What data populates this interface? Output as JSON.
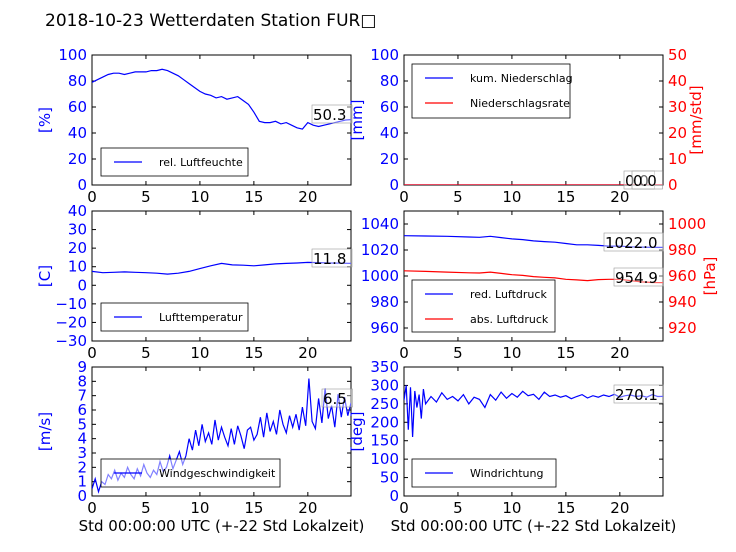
{
  "title": "2018-10-23 Wetterdaten Station FUR□",
  "colors": {
    "blue": "#0000ff",
    "red": "#ff0000",
    "black": "#000000"
  },
  "chart_data": [
    {
      "type": "line",
      "ylabel": "[%]",
      "xlim": [
        0,
        24
      ],
      "ylim": [
        0,
        100
      ],
      "xticks": [
        "0",
        "5",
        "10",
        "15",
        "20"
      ],
      "yticks": [
        "0",
        "20",
        "40",
        "60",
        "80",
        "100"
      ],
      "legend": "lower-left",
      "last_value": "50.3",
      "series": [
        {
          "name": "rel. Luftfeuchte",
          "color": "#0000ff",
          "x": [
            0,
            0.5,
            1,
            1.5,
            2,
            2.5,
            3,
            3.5,
            4,
            4.5,
            5,
            5.5,
            6,
            6.5,
            7,
            7.5,
            8,
            8.5,
            9,
            9.5,
            10,
            10.5,
            11,
            11.5,
            12,
            12.5,
            13,
            13.5,
            14,
            14.5,
            15,
            15.5,
            16,
            16.5,
            17,
            17.5,
            18,
            18.5,
            19,
            19.5,
            20,
            20.5,
            21,
            21.5,
            22,
            22.5,
            23,
            23.5,
            24
          ],
          "y": [
            79,
            81,
            83,
            85,
            86,
            86,
            85,
            86,
            87,
            87,
            87,
            88,
            88,
            89,
            88,
            86,
            84,
            81,
            78,
            75,
            72,
            70,
            69,
            67,
            68,
            66,
            67,
            68,
            65,
            62,
            56,
            49,
            48,
            48,
            49,
            47,
            48,
            46,
            44,
            43,
            48,
            46,
            45,
            46,
            47,
            48,
            49,
            50,
            50.3
          ]
        }
      ]
    },
    {
      "type": "line",
      "ylabel": "[mm]",
      "ylabel_right": "[mm/std]",
      "xlim": [
        0,
        24
      ],
      "ylim": [
        0,
        100
      ],
      "ylim_right": [
        0,
        50
      ],
      "xticks": [
        "0",
        "5",
        "10",
        "15",
        "20"
      ],
      "yticks": [
        "0",
        "20",
        "40",
        "60",
        "80",
        "100"
      ],
      "yticks_right": [
        "0",
        "10",
        "20",
        "30",
        "40",
        "50"
      ],
      "legend": "upper-left",
      "last_values": [
        "0.0",
        "0.0"
      ],
      "series": [
        {
          "name": "kum. Niederschlag",
          "color": "#0000ff",
          "x": [
            0,
            24
          ],
          "y": [
            0,
            0
          ]
        },
        {
          "name": "Niederschlagsrate",
          "color": "#ff0000",
          "x": [
            0,
            24
          ],
          "y": [
            0,
            0
          ]
        }
      ]
    },
    {
      "type": "line",
      "ylabel": "[C]",
      "xlim": [
        0,
        24
      ],
      "ylim": [
        -30,
        40
      ],
      "xticks": [
        "0",
        "5",
        "10",
        "15",
        "20"
      ],
      "yticks": [
        "−30",
        "−20",
        "−10",
        "0",
        "10",
        "20",
        "30",
        "40"
      ],
      "legend": "lower-left",
      "last_value": "11.8",
      "series": [
        {
          "name": "Lufttemperatur",
          "color": "#0000ff",
          "x": [
            0,
            1,
            2,
            3,
            4,
            5,
            6,
            7,
            8,
            9,
            10,
            11,
            12,
            13,
            14,
            15,
            16,
            17,
            18,
            19,
            20,
            21,
            22,
            23,
            24
          ],
          "y": [
            7.5,
            6.8,
            7,
            7.2,
            7,
            6.8,
            6.5,
            6,
            6.5,
            7.5,
            9,
            10.5,
            11.8,
            11,
            10.8,
            10.5,
            11,
            11.5,
            11.8,
            12,
            12.3,
            12.2,
            12,
            11.9,
            11.8
          ]
        }
      ]
    },
    {
      "type": "line",
      "ylabel": "[hPa]",
      "xlim": [
        0,
        24
      ],
      "ylim": [
        950,
        1050
      ],
      "ylim_right": [
        910,
        1010
      ],
      "xticks": [
        "0",
        "5",
        "10",
        "15",
        "20"
      ],
      "yticks": [
        "960",
        "980",
        "1000",
        "1020",
        "1040"
      ],
      "yticks_right": [
        "920",
        "940",
        "960",
        "980",
        "1000"
      ],
      "legend": "lower-left",
      "last_values": [
        "1022.0",
        "954.9"
      ],
      "series": [
        {
          "name": "red. Luftdruck",
          "color": "#0000ff",
          "x": [
            0,
            2,
            4,
            6,
            7,
            8,
            9,
            10,
            11,
            12,
            13,
            14,
            15,
            16,
            17,
            18,
            19,
            20,
            21,
            22,
            23,
            24
          ],
          "y": [
            1031,
            1030.8,
            1030.5,
            1030,
            1029.8,
            1030.5,
            1029.5,
            1028.5,
            1028,
            1027,
            1026.5,
            1026,
            1025,
            1024,
            1024,
            1023.5,
            1023,
            1023,
            1022.5,
            1022.2,
            1022,
            1022
          ]
        },
        {
          "name": "abs. Luftdruck",
          "color": "#ff0000",
          "x": [
            0,
            2,
            4,
            6,
            7,
            8,
            9,
            10,
            11,
            12,
            13,
            14,
            15,
            16,
            17,
            18,
            19,
            20,
            21,
            22,
            23,
            24
          ],
          "y": [
            964,
            963.5,
            963,
            962.5,
            962.3,
            963,
            962,
            961,
            960.5,
            959.5,
            959,
            958.5,
            957.5,
            957,
            956.5,
            957.2,
            957.5,
            957.5,
            956.5,
            955.5,
            955,
            954.9
          ]
        }
      ]
    },
    {
      "type": "line",
      "ylabel": "[m/s]",
      "xlabel": "Std 00:00:00 UTC (+-22 Std Lokalzeit)",
      "xlim": [
        0,
        24
      ],
      "ylim": [
        0,
        9
      ],
      "xticks": [
        "0",
        "5",
        "10",
        "15",
        "20"
      ],
      "yticks": [
        "0",
        "1",
        "2",
        "3",
        "4",
        "5",
        "6",
        "7",
        "8",
        "9"
      ],
      "legend": "lower-left",
      "last_value": "6.5",
      "series": [
        {
          "name": "Windgeschwindigkeit",
          "color": "#0000ff",
          "x": [
            0,
            0.3,
            0.6,
            0.9,
            1.2,
            1.5,
            1.8,
            2.1,
            2.4,
            2.7,
            3,
            3.3,
            3.6,
            3.9,
            4.2,
            4.5,
            4.8,
            5.1,
            5.4,
            5.7,
            6,
            6.3,
            6.6,
            6.9,
            7.2,
            7.5,
            7.8,
            8.1,
            8.4,
            8.7,
            9,
            9.3,
            9.6,
            9.9,
            10.2,
            10.5,
            10.8,
            11.1,
            11.4,
            11.7,
            12,
            12.3,
            12.6,
            12.9,
            13.2,
            13.5,
            13.8,
            14.1,
            14.4,
            14.7,
            15,
            15.3,
            15.6,
            15.9,
            16.2,
            16.5,
            16.8,
            17.1,
            17.4,
            17.7,
            18,
            18.3,
            18.6,
            18.9,
            19.2,
            19.5,
            19.8,
            20.1,
            20.4,
            20.7,
            21,
            21.3,
            21.6,
            21.9,
            22.2,
            22.5,
            22.8,
            23.1,
            23.4,
            23.7,
            24
          ],
          "y": [
            0.5,
            1.2,
            0.3,
            1,
            0.8,
            1.5,
            1.2,
            1.8,
            1.1,
            1.6,
            1.3,
            2,
            1.5,
            1.2,
            1.9,
            1.4,
            2.2,
            1.6,
            1.3,
            1.8,
            1.5,
            2.4,
            1.7,
            2,
            2.8,
            1.9,
            2.5,
            3.1,
            2.2,
            2.8,
            4,
            3.2,
            4.6,
            3.5,
            5,
            3.8,
            4.4,
            3.6,
            5.3,
            3.9,
            4.8,
            4.1,
            3.5,
            4.7,
            3.6,
            4.9,
            4.2,
            3.3,
            4.6,
            4.8,
            3.9,
            4.3,
            5.5,
            4.1,
            5.8,
            4.5,
            5.2,
            4.3,
            6,
            5,
            4.4,
            5.6,
            4.8,
            5.7,
            4.6,
            6.2,
            4.9,
            8.2,
            5.2,
            4.7,
            6.8,
            5.1,
            7.5,
            5.4,
            6.3,
            4.8,
            7.1,
            5.5,
            6.9,
            5.6,
            6.5
          ]
        }
      ]
    },
    {
      "type": "line",
      "ylabel": "[deg]",
      "xlabel": "Std 00:00:00 UTC (+-22 Std Lokalzeit)",
      "xlim": [
        0,
        24
      ],
      "ylim": [
        0,
        350
      ],
      "xticks": [
        "0",
        "5",
        "10",
        "15",
        "20"
      ],
      "yticks": [
        "0",
        "50",
        "100",
        "150",
        "200",
        "250",
        "300",
        "350"
      ],
      "legend": "lower-left",
      "last_value": "270.1",
      "series": [
        {
          "name": "Windrichtung",
          "color": "#0000ff",
          "x": [
            0,
            0.2,
            0.4,
            0.6,
            0.8,
            1,
            1.2,
            1.4,
            1.6,
            1.8,
            2,
            2.5,
            3,
            3.5,
            4,
            4.5,
            5,
            5.5,
            6,
            6.5,
            7,
            7.5,
            8,
            8.5,
            9,
            9.5,
            10,
            10.5,
            11,
            11.5,
            12,
            12.5,
            13,
            13.5,
            14,
            14.5,
            15,
            15.5,
            16,
            16.5,
            17,
            17.5,
            18,
            18.5,
            19,
            19.5,
            20,
            20.5,
            21,
            21.5,
            22,
            22.5,
            23,
            23.5,
            24
          ],
          "y": [
            260,
            300,
            180,
            295,
            160,
            285,
            240,
            275,
            210,
            290,
            250,
            270,
            255,
            280,
            262,
            270,
            258,
            275,
            250,
            268,
            262,
            240,
            275,
            260,
            282,
            265,
            278,
            268,
            284,
            272,
            276,
            262,
            282,
            270,
            274,
            268,
            272,
            264,
            270,
            275,
            266,
            272,
            268,
            274,
            270,
            276,
            268,
            272,
            274,
            270,
            272,
            268,
            275,
            270,
            270.1
          ]
        }
      ]
    }
  ]
}
